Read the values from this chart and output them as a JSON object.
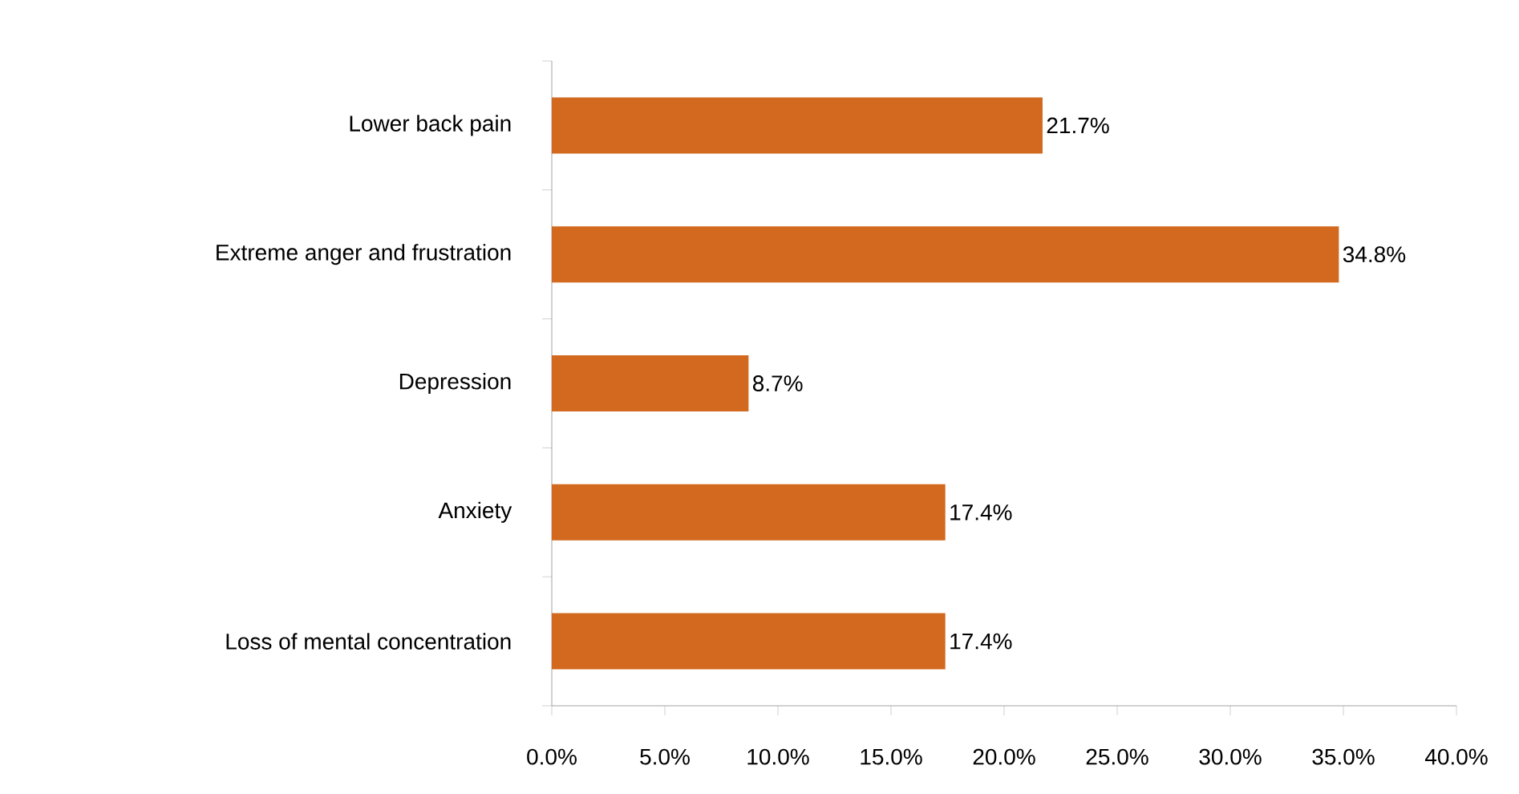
{
  "chart_data": {
    "type": "bar",
    "orientation": "horizontal",
    "categories": [
      "Lower back pain",
      "Extreme anger and frustration",
      "Depression",
      "Anxiety",
      "Loss of mental concentration"
    ],
    "values": [
      21.7,
      34.8,
      8.7,
      17.4,
      17.4
    ],
    "value_labels": [
      "21.7%",
      "34.8%",
      "8.7%",
      "17.4%",
      "17.4%"
    ],
    "color": "#d2691f",
    "xlim": [
      0,
      40
    ],
    "xticks": [
      {
        "value": 0,
        "label": "0.0%"
      },
      {
        "value": 5,
        "label": "5.0%"
      },
      {
        "value": 10,
        "label": "10.0%"
      },
      {
        "value": 15,
        "label": "15.0%"
      },
      {
        "value": 20,
        "label": "20.0%"
      },
      {
        "value": 25,
        "label": "25.0%"
      },
      {
        "value": 30,
        "label": "30.0%"
      },
      {
        "value": 35,
        "label": "35.0%"
      },
      {
        "value": 40,
        "label": "40.0%"
      }
    ],
    "grid": false
  }
}
